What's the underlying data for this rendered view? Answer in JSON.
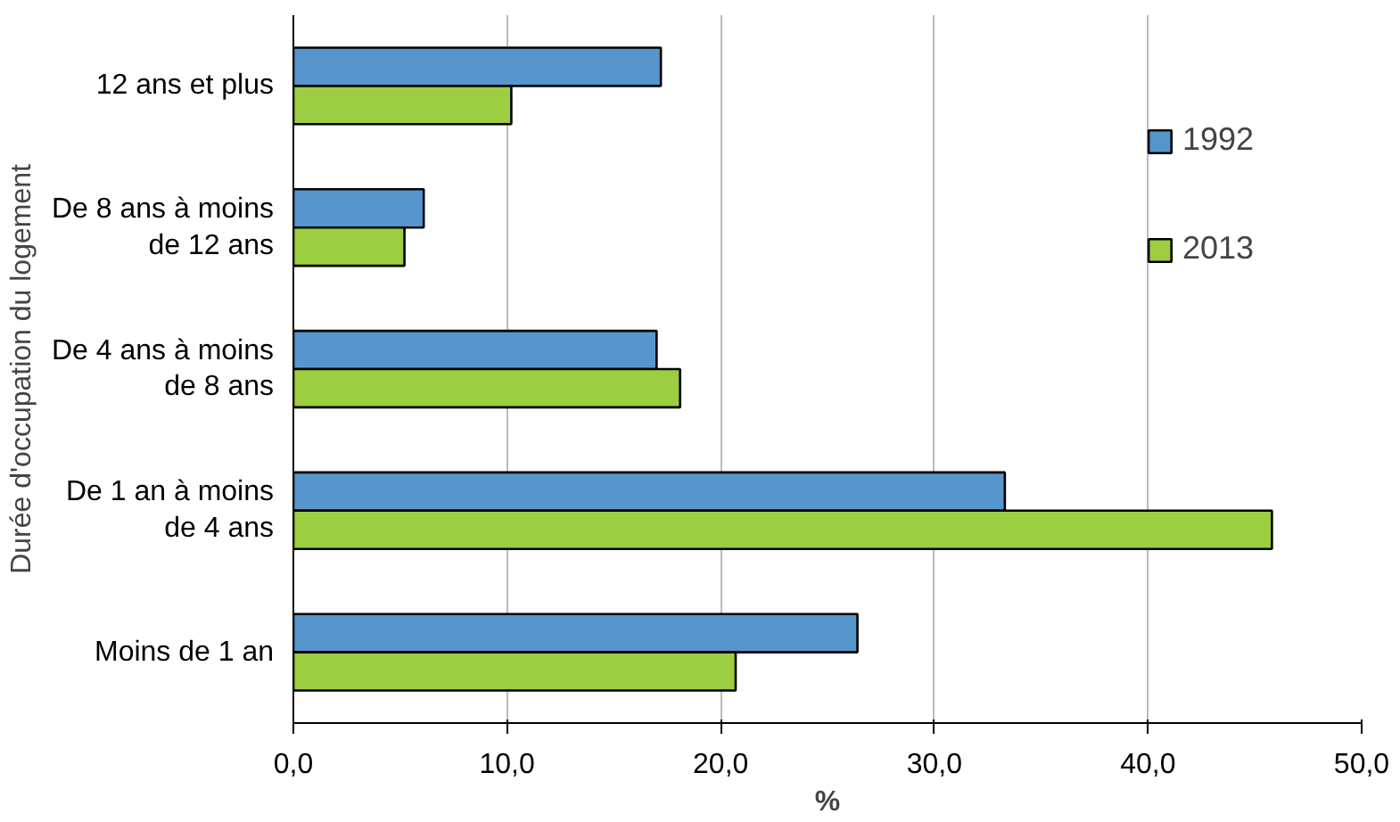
{
  "chart_data": {
    "type": "bar",
    "orientation": "horizontal",
    "xlabel": "%",
    "ylabel": "Durée d'occupation du logement",
    "categories": [
      "12 ans et plus",
      "De 8 ans à moins\nde 12 ans",
      "De 4 ans à moins\nde 8 ans",
      "De 1 an à moins\nde 4 ans",
      "Moins de 1 an"
    ],
    "series": [
      {
        "name": "1992",
        "color": "#5796cd",
        "values": [
          17.2,
          6.1,
          17.0,
          33.3,
          26.4
        ]
      },
      {
        "name": "2013",
        "color": "#9dcd41",
        "values": [
          10.2,
          5.2,
          18.1,
          45.8,
          20.7
        ]
      }
    ],
    "xlim": [
      0,
      50
    ],
    "xticks": [
      {
        "value": 0,
        "label": "0,0"
      },
      {
        "value": 10,
        "label": "10,0"
      },
      {
        "value": 20,
        "label": "20,0"
      },
      {
        "value": 30,
        "label": "30,0"
      },
      {
        "value": 40,
        "label": "40,0"
      },
      {
        "value": 50,
        "label": "50,0"
      }
    ],
    "grid": "x",
    "legend": "top right"
  }
}
